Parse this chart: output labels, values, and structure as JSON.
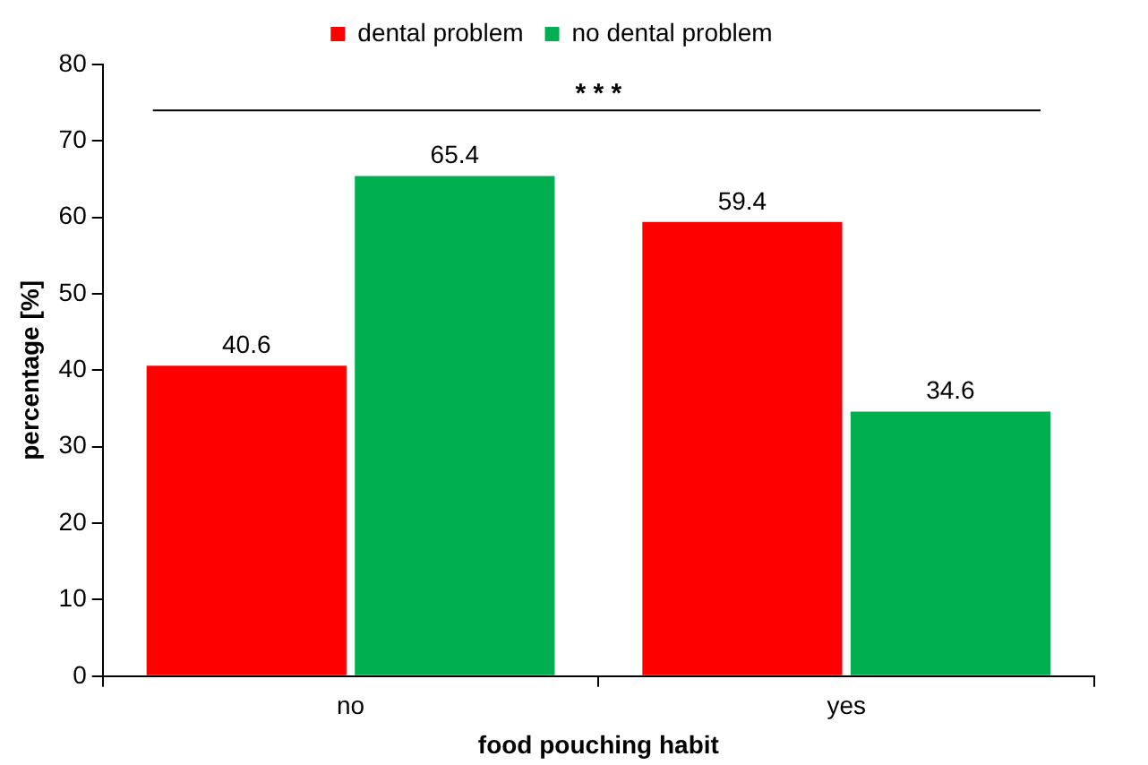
{
  "chart_data": {
    "type": "bar",
    "xlabel": "food pouching habit",
    "ylabel": "percentage [%]",
    "categories": [
      "no",
      "yes"
    ],
    "series": [
      {
        "name": "dental problem",
        "color": "#ff0000",
        "values": [
          40.6,
          59.4
        ]
      },
      {
        "name": "no dental problem",
        "color": "#00b050",
        "values": [
          65.4,
          34.6
        ]
      }
    ],
    "ylim": [
      0,
      80
    ],
    "yticks": [
      0,
      10,
      20,
      30,
      40,
      50,
      60,
      70,
      80
    ],
    "grid": false,
    "legend": "top",
    "data_labels": true,
    "ref_lines": [
      {
        "axis": "y",
        "value": 74,
        "label": "* * *",
        "color": "#000000"
      }
    ]
  }
}
